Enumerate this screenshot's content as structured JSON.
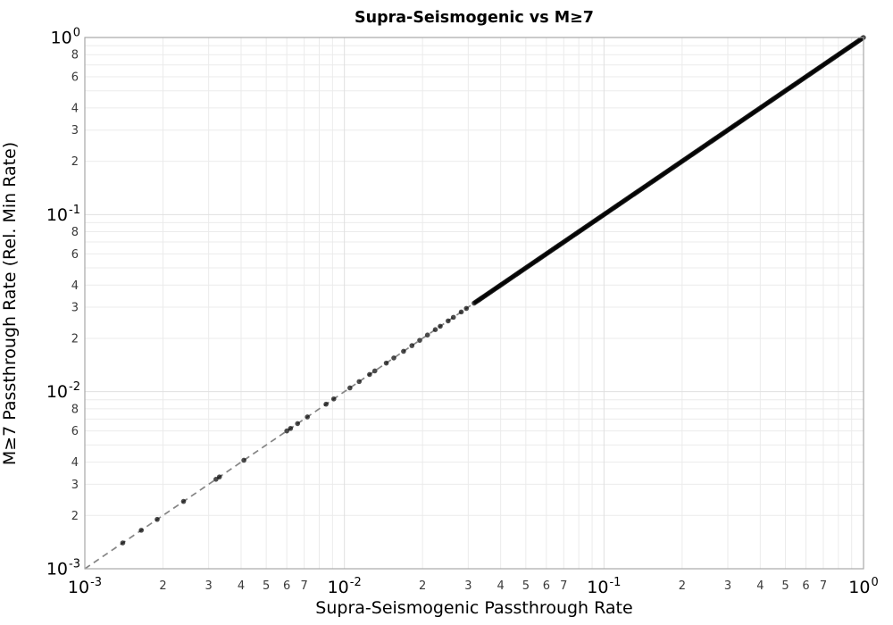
{
  "chart_data": {
    "type": "scatter",
    "title": "Supra-Seismogenic vs M≥7",
    "xlabel": "Supra-Seismogenic Passthrough Rate",
    "ylabel": "M≥7 Passthrough Rate (Rel. Min Rate)",
    "xscale": "log",
    "yscale": "log",
    "xlim": [
      0.001,
      1.0
    ],
    "ylim": [
      0.001,
      1.0
    ],
    "grid": true,
    "legend": "none",
    "x_axis": {
      "major_tick_exponents": [
        -3,
        -2,
        -1,
        0
      ],
      "major_tick_base": "10",
      "minor_tick_labels": [
        2,
        3,
        4,
        5,
        6,
        7
      ],
      "minor_grid_subs": [
        2,
        3,
        4,
        5,
        6,
        7,
        8,
        9
      ]
    },
    "y_axis": {
      "major_tick_exponents": [
        0,
        -1,
        -2,
        -3
      ],
      "major_tick_base": "10",
      "minor_tick_labels": [
        2,
        3,
        4,
        6,
        8
      ],
      "minor_grid_subs": [
        2,
        3,
        4,
        5,
        6,
        7,
        8,
        9
      ]
    },
    "reference_line": {
      "relation": "y = x (1:1 line)",
      "from": 0.001,
      "to": 1.0,
      "style": "dashed",
      "color": "#858585"
    },
    "series": [
      {
        "name": "passthrough-rate points",
        "relation": "y equals x for every point (all points lie exactly on the 1:1 line)",
        "marker": {
          "shape": "circle",
          "color": "#000000",
          "opacity": 0.7,
          "radius_px": 2.8
        },
        "sparse_points_x": [
          0.0014,
          0.00165,
          0.0019,
          0.0024,
          0.0032,
          0.0033,
          0.0041,
          0.006,
          0.0062,
          0.0066,
          0.0072,
          0.0085,
          0.0091,
          0.0105,
          0.0114,
          0.0125,
          0.0131,
          0.0145,
          0.0155,
          0.0169,
          0.0182,
          0.0195,
          0.0209,
          0.0224,
          0.0234,
          0.0251,
          0.0263,
          0.0282,
          0.0295
        ],
        "dense_band_x": {
          "min": 0.0316,
          "max": 1.0,
          "log10_step": 0.005,
          "description": "points so dense from ~0.03 to 1.0 that they merge into a solid thick black diagonal line ending at (1,1)"
        }
      }
    ],
    "colors": {
      "background": "#ffffff",
      "grid_major": "#e0e0e0",
      "grid_minor": "#ebebeb",
      "spine": "#a8a8a8",
      "tick_major_text": "#000000",
      "tick_minor_text": "#3a3a3a",
      "title_text": "#000000",
      "axis_label_text": "#000000"
    }
  }
}
